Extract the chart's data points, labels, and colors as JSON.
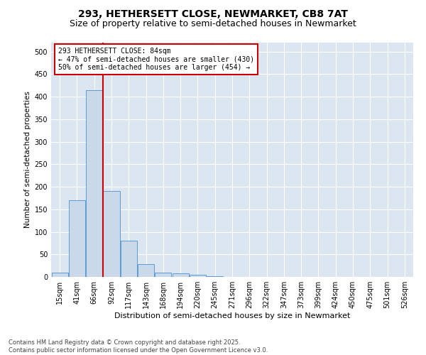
{
  "title": "293, HETHERSETT CLOSE, NEWMARKET, CB8 7AT",
  "subtitle": "Size of property relative to semi-detached houses in Newmarket",
  "xlabel": "Distribution of semi-detached houses by size in Newmarket",
  "ylabel": "Number of semi-detached properties",
  "footnote": "Contains HM Land Registry data © Crown copyright and database right 2025.\nContains public sector information licensed under the Open Government Licence v3.0.",
  "categories": [
    "15sqm",
    "41sqm",
    "66sqm",
    "92sqm",
    "117sqm",
    "143sqm",
    "168sqm",
    "194sqm",
    "220sqm",
    "245sqm",
    "271sqm",
    "296sqm",
    "322sqm",
    "347sqm",
    "373sqm",
    "399sqm",
    "424sqm",
    "450sqm",
    "475sqm",
    "501sqm",
    "526sqm"
  ],
  "values": [
    10,
    170,
    415,
    190,
    80,
    28,
    9,
    8,
    5,
    2,
    0,
    0,
    0,
    0,
    0,
    0,
    0,
    0,
    0,
    0,
    0
  ],
  "bar_color": "#c9d9ea",
  "bar_edge_color": "#5b9bd5",
  "red_line_x": 2.5,
  "annotation_text": "293 HETHERSETT CLOSE: 84sqm\n← 47% of semi-detached houses are smaller (430)\n50% of semi-detached houses are larger (454) →",
  "annotation_box_color": "#ffffff",
  "annotation_box_edge": "#cc0000",
  "red_line_color": "#cc0000",
  "ylim": [
    0,
    520
  ],
  "yticks": [
    0,
    50,
    100,
    150,
    200,
    250,
    300,
    350,
    400,
    450,
    500
  ],
  "bg_color": "#dce6f1",
  "grid_color": "#ffffff",
  "fig_bg_color": "#ffffff",
  "title_fontsize": 10,
  "subtitle_fontsize": 9,
  "axis_label_fontsize": 8,
  "tick_fontsize": 7,
  "annotation_fontsize": 7,
  "footnote_fontsize": 6,
  "ylabel_fontsize": 7.5
}
